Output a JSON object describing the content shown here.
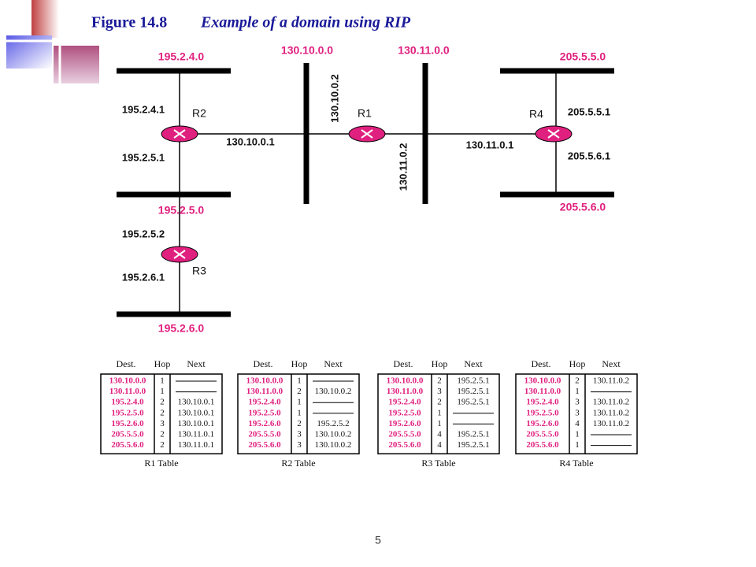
{
  "header": {
    "figure": "Figure 14.8",
    "title": "Example of a domain using RIP"
  },
  "networks": [
    {
      "label": "195.2.4.0"
    },
    {
      "label": "195.2.5.0"
    },
    {
      "label": "195.2.6.0"
    },
    {
      "label": "130.10.0.0"
    },
    {
      "label": "130.11.0.0"
    },
    {
      "label": "205.5.5.0"
    },
    {
      "label": "205.5.6.0"
    }
  ],
  "routers": [
    {
      "label": "R1"
    },
    {
      "label": "R2"
    },
    {
      "label": "R3"
    },
    {
      "label": "R4"
    }
  ],
  "interfaces": [
    {
      "label": "195.2.4.1"
    },
    {
      "label": "195.2.5.1"
    },
    {
      "label": "130.10.0.1"
    },
    {
      "label": "130.10.0.2"
    },
    {
      "label": "130.11.0.2"
    },
    {
      "label": "130.11.0.1"
    },
    {
      "label": "205.5.5.1"
    },
    {
      "label": "205.5.6.1"
    },
    {
      "label": "195.2.5.2"
    },
    {
      "label": "195.2.6.1"
    }
  ],
  "tables": [
    {
      "header": [
        "Dest.",
        "Hop",
        "Next"
      ],
      "caption": "R1 Table",
      "rows": [
        [
          "130.10.0.0",
          1,
          null
        ],
        [
          "130.11.0.0",
          1,
          null
        ],
        [
          "195.2.4.0",
          2,
          "130.10.0.1"
        ],
        [
          "195.2.5.0",
          2,
          "130.10.0.1"
        ],
        [
          "195.2.6.0",
          3,
          "130.10.0.1"
        ],
        [
          "205.5.5.0",
          2,
          "130.11.0.1"
        ],
        [
          "205.5.6.0",
          2,
          "130.11.0.1"
        ]
      ]
    },
    {
      "header": [
        "Dest.",
        "Hop",
        "Next"
      ],
      "caption": "R2 Table",
      "rows": [
        [
          "130.10.0.0",
          1,
          null
        ],
        [
          "130.11.0.0",
          2,
          "130.10.0.2"
        ],
        [
          "195.2.4.0",
          1,
          null
        ],
        [
          "195.2.5.0",
          1,
          null
        ],
        [
          "195.2.6.0",
          2,
          "195.2.5.2"
        ],
        [
          "205.5.5.0",
          3,
          "130.10.0.2"
        ],
        [
          "205.5.6.0",
          3,
          "130.10.0.2"
        ]
      ]
    },
    {
      "header": [
        "Dest.",
        "Hop",
        "Next"
      ],
      "caption": "R3 Table",
      "rows": [
        [
          "130.10.0.0",
          2,
          "195.2.5.1"
        ],
        [
          "130.11.0.0",
          3,
          "195.2.5.1"
        ],
        [
          "195.2.4.0",
          2,
          "195.2.5.1"
        ],
        [
          "195.2.5.0",
          1,
          null
        ],
        [
          "195.2.6.0",
          1,
          null
        ],
        [
          "205.5.5.0",
          4,
          "195.2.5.1"
        ],
        [
          "205.5.6.0",
          4,
          "195.2.5.1"
        ]
      ]
    },
    {
      "header": [
        "Dest.",
        "Hop",
        "Next"
      ],
      "caption": "R4 Table",
      "rows": [
        [
          "130.10.0.0",
          2,
          "130.11.0.2"
        ],
        [
          "130.11.0.0",
          1,
          null
        ],
        [
          "195.2.4.0",
          3,
          "130.11.0.2"
        ],
        [
          "195.2.5.0",
          3,
          "130.11.0.2"
        ],
        [
          "195.2.6.0",
          4,
          "130.11.0.2"
        ],
        [
          "205.5.5.0",
          1,
          null
        ],
        [
          "205.5.6.0",
          1,
          null
        ]
      ]
    }
  ],
  "page_number": "5"
}
